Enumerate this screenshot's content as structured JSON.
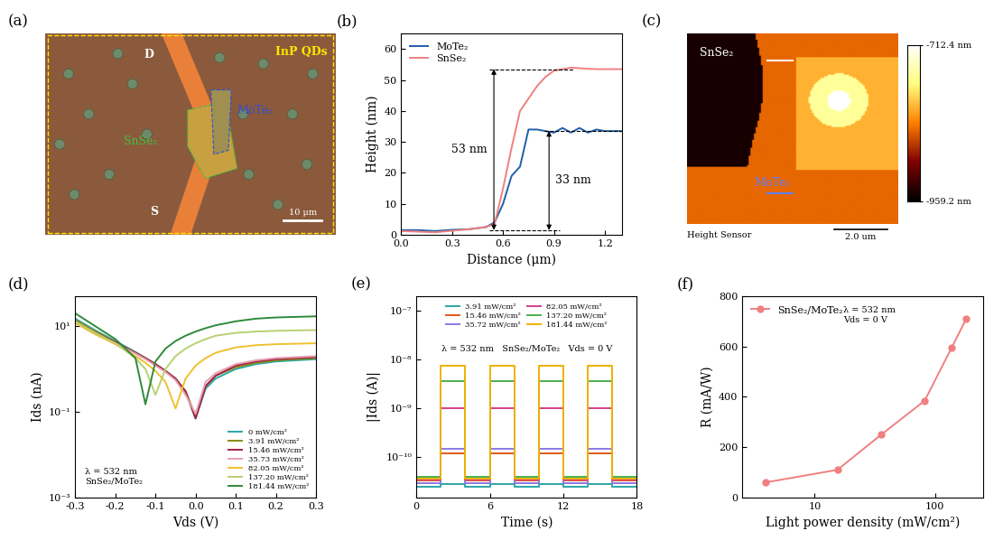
{
  "chart_data": [
    {
      "panel": "(b)",
      "type": "line",
      "xlabel": "Distance (μm)",
      "ylabel": "Height (nm)",
      "xlim": [
        0,
        1.3
      ],
      "xticks": [
        {
          "value": 0,
          "label": "0.0"
        },
        0.3,
        0.6,
        0.9,
        1.2
      ],
      "ylim": [
        0,
        65
      ],
      "yticks": [
        0,
        10,
        20,
        30,
        40,
        50,
        60
      ],
      "legend": "upper left",
      "x": [
        0,
        0.1,
        0.2,
        0.3,
        0.4,
        0.5,
        0.55,
        0.6,
        0.65,
        0.7,
        0.75,
        0.8,
        0.85,
        0.9,
        0.95,
        1.0,
        1.05,
        1.1,
        1.15,
        1.2,
        1.25,
        1.3
      ],
      "series": [
        {
          "name": "MoTe₂",
          "color": "#1f5fa8",
          "line_style": "solid",
          "values": [
            1.5,
            1.5,
            1.2,
            1.6,
            1.8,
            2.5,
            4,
            10,
            19,
            22,
            34,
            34,
            33.5,
            33,
            34.5,
            33,
            34.5,
            33,
            34,
            33.5,
            33.5,
            33.5
          ]
        },
        {
          "name": "SnSe₂",
          "color": "#f08080",
          "line_style": "solid",
          "values": [
            1.2,
            1.0,
            0.8,
            1.3,
            1.8,
            2.5,
            3.5,
            15,
            28,
            40,
            44,
            48,
            51,
            53,
            53.5,
            54,
            53.8,
            53.6,
            53.5,
            53.5,
            53.5,
            53.5
          ]
        }
      ],
      "annotations": [
        {
          "text": "53 nm",
          "range": [
            1.5,
            53.5
          ]
        },
        {
          "text": "33 nm",
          "range": [
            1.5,
            33.5
          ]
        }
      ]
    },
    {
      "panel": "(d)",
      "type": "line",
      "log": "y",
      "xlabel": "Vds (V)",
      "ylabel": "Ids (nA)",
      "xlim": [
        -0.3,
        0.3
      ],
      "xticks": [
        -0.3,
        -0.2,
        -0.1,
        {
          "value": 0,
          "label": "0.0"
        },
        0.1,
        0.2,
        0.3
      ],
      "ylim": [
        0.001,
        50
      ],
      "yticks": [
        {
          "value": 0.001,
          "label": "10⁻³"
        },
        {
          "value": 0.1,
          "label": "10⁻¹"
        },
        {
          "value": 10,
          "label": "10¹"
        }
      ],
      "legend": "lower right",
      "x": [
        -0.3,
        -0.25,
        -0.2,
        -0.15,
        -0.125,
        -0.1,
        -0.075,
        -0.05,
        -0.025,
        0,
        0.025,
        0.05,
        0.1,
        0.15,
        0.2,
        0.25,
        0.3
      ],
      "series": [
        {
          "name": "0 mW/cm²",
          "color": "#2ca6a4",
          "values": [
            15,
            8,
            4.5,
            2.5,
            1.8,
            1.3,
            0.9,
            0.6,
            0.3,
            0.07,
            0.35,
            0.6,
            1.0,
            1.3,
            1.5,
            1.6,
            1.7
          ]
        },
        {
          "name": "3.91 mW/cm²",
          "color": "#8a8a10",
          "values": [
            14,
            7.5,
            4.3,
            2.4,
            1.8,
            1.3,
            0.9,
            0.6,
            0.3,
            0.08,
            0.4,
            0.7,
            1.1,
            1.4,
            1.6,
            1.7,
            1.8
          ]
        },
        {
          "name": "15.46 mW/cm²",
          "color": "#a0224a",
          "values": [
            13,
            7,
            4.2,
            2.4,
            1.8,
            1.3,
            0.9,
            0.6,
            0.3,
            0.07,
            0.4,
            0.7,
            1.2,
            1.5,
            1.7,
            1.8,
            1.9
          ]
        },
        {
          "name": "35.73 mW/cm²",
          "color": "#e8a0b0",
          "values": [
            12,
            6.5,
            4,
            2.3,
            1.7,
            1.2,
            0.85,
            0.55,
            0.25,
            0.09,
            0.5,
            0.8,
            1.3,
            1.6,
            1.8,
            1.9,
            2.0
          ]
        },
        {
          "name": "82.05 mW/cm²",
          "color": "#f0c030",
          "values": [
            12,
            6.5,
            3.8,
            2.0,
            1.4,
            0.9,
            0.5,
            0.12,
            0.6,
            1.2,
            1.8,
            2.4,
            3.2,
            3.6,
            3.8,
            3.9,
            4.0
          ]
        },
        {
          "name": "137.20 mW/cm²",
          "color": "#b8d070",
          "values": [
            13,
            7,
            4,
            1.8,
            1.0,
            0.25,
            1.0,
            2.0,
            3.0,
            4.0,
            5.0,
            6.0,
            7.0,
            7.5,
            7.8,
            8.0,
            8.1
          ]
        },
        {
          "name": "181.44 mW/cm²",
          "color": "#2e8b3a",
          "values": [
            20,
            10,
            5,
            1.8,
            0.15,
            1.5,
            3.0,
            4.5,
            6,
            7.5,
            9,
            10.5,
            13,
            15,
            16,
            16.5,
            17
          ]
        }
      ],
      "annotations": [
        {
          "text": "λ = 532 nm\nSnSe₂/MoTe₂"
        }
      ]
    },
    {
      "panel": "(e)",
      "type": "line",
      "log": "y",
      "xlabel": "Time (s)",
      "ylabel": "|Ids (A)|",
      "xlim": [
        0,
        18
      ],
      "xticks": [
        0,
        6,
        12,
        18
      ],
      "ylim": [
        1.5e-11,
        2e-07
      ],
      "yticks": [
        {
          "value": 1e-10,
          "label": "10⁻¹⁰"
        },
        {
          "value": 1e-09,
          "label": "10⁻⁹"
        },
        {
          "value": 1e-08,
          "label": "10⁻⁸"
        },
        {
          "value": 1e-07,
          "label": "10⁻⁷"
        }
      ],
      "legend": "upper center",
      "x": [
        0,
        2,
        2,
        4,
        4,
        6,
        6,
        8,
        8,
        10,
        10,
        12,
        12,
        14,
        14,
        16,
        16,
        18
      ],
      "series": [
        {
          "name": "3.91 mW/cm²",
          "color": "#2ca6a4",
          "values": [
            2.5e-11,
            2.5e-11,
            2.8e-11,
            2.8e-11,
            2.5e-11,
            2.5e-11,
            2.8e-11,
            2.8e-11,
            2.5e-11,
            2.5e-11,
            2.8e-11,
            2.8e-11,
            2.5e-11,
            2.5e-11,
            2.8e-11,
            2.8e-11,
            2.5e-11,
            2.5e-11
          ]
        },
        {
          "name": "15.46 mW/cm²",
          "color": "#e05a1a",
          "values": [
            3.3e-11,
            3.3e-11,
            1.2e-10,
            1.2e-10,
            3.3e-11,
            3.3e-11,
            1.2e-10,
            1.2e-10,
            3.3e-11,
            3.3e-11,
            1.2e-10,
            1.2e-10,
            3.3e-11,
            3.3e-11,
            1.2e-10,
            1.2e-10,
            3.3e-11,
            3.3e-11
          ]
        },
        {
          "name": "35.72 mW/cm²",
          "color": "#8c7ae6",
          "values": [
            3e-11,
            3e-11,
            1.5e-10,
            1.5e-10,
            3e-11,
            3e-11,
            1.5e-10,
            1.5e-10,
            3e-11,
            3e-11,
            1.5e-10,
            1.5e-10,
            3e-11,
            3e-11,
            1.5e-10,
            1.5e-10,
            3e-11,
            3e-11
          ]
        },
        {
          "name": "82.05 mW/cm²",
          "color": "#d43f8d",
          "values": [
            3.5e-11,
            3.5e-11,
            1e-09,
            1e-09,
            3.5e-11,
            3.5e-11,
            1e-09,
            1e-09,
            3.5e-11,
            3.5e-11,
            1e-09,
            1e-09,
            3.5e-11,
            3.5e-11,
            1e-09,
            1e-09,
            3.5e-11,
            3.5e-11
          ]
        },
        {
          "name": "137.20 mW/cm²",
          "color": "#4caf50",
          "values": [
            4e-11,
            4e-11,
            3.7e-09,
            3.7e-09,
            4e-11,
            4e-11,
            3.7e-09,
            3.7e-09,
            4e-11,
            4e-11,
            3.7e-09,
            3.7e-09,
            4e-11,
            4e-11,
            3.7e-09,
            3.7e-09,
            4e-11,
            4e-11
          ]
        },
        {
          "name": "181.44 mW/cm²",
          "color": "#f0b000",
          "values": [
            3.6e-11,
            3.6e-11,
            7.5e-09,
            7.5e-09,
            3.6e-11,
            3.6e-11,
            7.5e-09,
            7.5e-09,
            3.6e-11,
            3.6e-11,
            7.5e-09,
            7.5e-09,
            3.6e-11,
            3.6e-11,
            7.5e-09,
            7.5e-09,
            3.6e-11,
            3.6e-11
          ]
        }
      ],
      "annotations": [
        {
          "text": "λ = 532 nm   SnSe₂/MoTe₂   Vds = 0 V"
        }
      ]
    },
    {
      "panel": "(f)",
      "type": "line",
      "log": "x",
      "xlabel": "Light power density (mW/cm²)",
      "ylabel": "R (mA/W)",
      "xlim": [
        2.5,
        250
      ],
      "xticks": [
        10,
        100
      ],
      "ylim": [
        0,
        800
      ],
      "yticks": [
        0,
        200,
        400,
        600,
        800
      ],
      "legend": "upper left",
      "x": [
        3.91,
        15.46,
        35.72,
        82.05,
        137.2,
        181.44
      ],
      "series": [
        {
          "name": "SnSe₂/MoTe₂",
          "color": "#f08080",
          "marker": "circle",
          "line_style": "solid",
          "values": [
            60,
            110,
            250,
            385,
            595,
            710
          ]
        }
      ],
      "annotations": [
        {
          "text": "λ = 532 nm\nVds = 0 V"
        }
      ]
    }
  ],
  "image_panels": [
    {
      "panel": "(a)",
      "texts": {
        "quantum_dots": "InP QDs",
        "drain": "D",
        "source": "S",
        "flake_top": "MoTe₂",
        "flake_bottom": "SnSe₂",
        "scale_bar": "10 μm"
      }
    },
    {
      "panel": "(c)",
      "texts": {
        "flake_top": "SnSe₂",
        "flake_bottom": "MoTe₂",
        "caption": "Height Sensor",
        "scale_bar": "2.0 um"
      },
      "colorbar": {
        "range": [
          -959.2,
          -712.4
        ],
        "ticks": [
          {
            "value": -959.2,
            "label": "-959.2 nm"
          },
          {
            "value": -712.4,
            "label": "-712.4 nm"
          }
        ]
      }
    }
  ]
}
